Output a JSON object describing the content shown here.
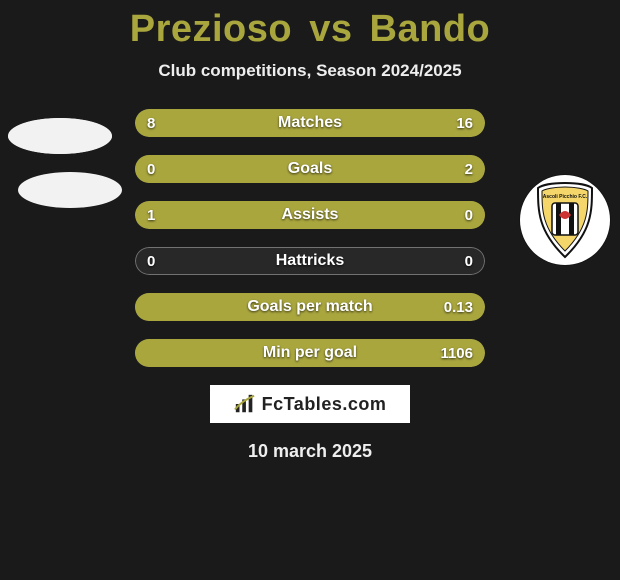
{
  "title": {
    "player1": "Prezioso",
    "vs": "vs",
    "player2": "Bando",
    "color": "#a9a63e"
  },
  "subtitle": "Club competitions, Season 2024/2025",
  "chart": {
    "accent_color": "#a9a63e",
    "track_border": "rgba(255,255,255,0.35)",
    "rows": [
      {
        "label": "Matches",
        "left": "8",
        "right": "16",
        "left_pct": 33,
        "right_pct": 67,
        "left_fill": true,
        "right_fill": true
      },
      {
        "label": "Goals",
        "left": "0",
        "right": "2",
        "left_pct": 0,
        "right_pct": 100,
        "left_fill": false,
        "right_fill": true
      },
      {
        "label": "Assists",
        "left": "1",
        "right": "0",
        "left_pct": 100,
        "right_pct": 0,
        "left_fill": true,
        "right_fill": false
      },
      {
        "label": "Hattricks",
        "left": "0",
        "right": "0",
        "left_pct": 0,
        "right_pct": 0,
        "left_fill": false,
        "right_fill": false
      },
      {
        "label": "Goals per match",
        "left": "",
        "right": "0.13",
        "left_pct": 0,
        "right_pct": 100,
        "left_fill": false,
        "right_fill": true
      },
      {
        "label": "Min per goal",
        "left": "",
        "right": "1106",
        "left_pct": 0,
        "right_pct": 100,
        "left_fill": false,
        "right_fill": true
      }
    ]
  },
  "footer": {
    "site": "FcTables.com",
    "date": "10 march 2025"
  },
  "colors": {
    "background": "#1a1a1a",
    "text": "#ffffff",
    "white": "#f2f2f2"
  }
}
